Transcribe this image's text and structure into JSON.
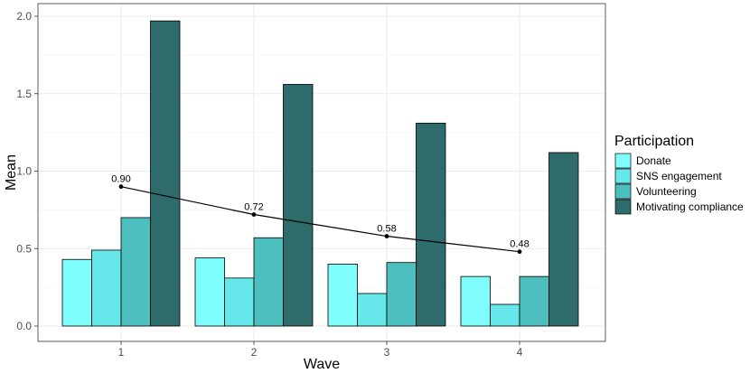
{
  "chart_data": {
    "type": "bar",
    "xlabel": "Wave",
    "ylabel": "Mean",
    "categories": [
      "1",
      "2",
      "3",
      "4"
    ],
    "ylim": [
      0,
      2.0
    ],
    "yticks": [
      "0.0",
      "0.5",
      "1.0",
      "1.5",
      "2.0"
    ],
    "ytick_values": [
      0,
      0.5,
      1.0,
      1.5,
      2.0
    ],
    "grid": true,
    "legend": {
      "title": "Participation",
      "position": "right"
    },
    "series": [
      {
        "name": "Donate",
        "color": "#7ffcfc",
        "values": [
          0.43,
          0.44,
          0.4,
          0.32
        ]
      },
      {
        "name": "SNS engagement",
        "color": "#66e8ea",
        "values": [
          0.49,
          0.31,
          0.21,
          0.14
        ]
      },
      {
        "name": "Volunteering",
        "color": "#4dbfbf",
        "values": [
          0.7,
          0.57,
          0.41,
          0.32
        ]
      },
      {
        "name": "Motivating compliance",
        "color": "#2e6b6b",
        "values": [
          1.97,
          1.56,
          1.31,
          1.12
        ]
      }
    ],
    "line": {
      "values": [
        0.9,
        0.72,
        0.58,
        0.48
      ],
      "labels": [
        "0.90",
        "0.72",
        "0.58",
        "0.48"
      ],
      "color": "#000000"
    }
  }
}
